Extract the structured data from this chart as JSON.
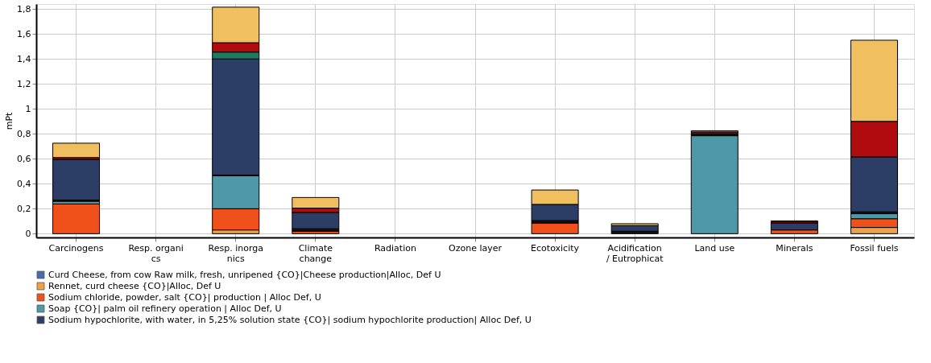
{
  "chart_data": {
    "type": "bar",
    "stacked": true,
    "ylabel": "mPt",
    "categories": [
      "Carcinogens",
      "Resp. organi\ncs",
      "Resp. inorga\nnics",
      "Climate\nchange",
      "Radiation",
      "Ozone layer",
      "Ecotoxicity",
      "Acidification\n/ Eutrophicat",
      "Land use",
      "Minerals",
      "Fossil fuels"
    ],
    "series": [
      {
        "name": "Curd Cheese, from cow Raw milk, fresh, unripened {CO}|Cheese production|Alloc, Def U",
        "color": "#4a6aa8",
        "values": [
          null,
          null,
          null,
          null,
          null,
          null,
          null,
          null,
          null,
          null,
          null
        ]
      },
      {
        "name": "Rennet, curd cheese {CO}|Alloc, Def U",
        "color": "#f0a048",
        "values": [
          null,
          null,
          0.03,
          null,
          null,
          null,
          null,
          null,
          null,
          null,
          0.05
        ]
      },
      {
        "name": "Sodium chloride, powder, salt {CO}| production | Alloc Def, U",
        "color": "#f0501a",
        "values": [
          0.238,
          null,
          0.17,
          0.02,
          null,
          null,
          0.085,
          null,
          null,
          0.03,
          0.07
        ]
      },
      {
        "name": "Soap {CO}| palm oil refinery operation | Alloc Def, U",
        "color": "#4e98a8",
        "values": [
          0.022,
          null,
          0.265,
          null,
          null,
          null,
          null,
          null,
          0.785,
          null,
          0.04
        ]
      },
      {
        "color": "#111111",
        "values": [
          0.01,
          null,
          0.005,
          0.02,
          null,
          null,
          0.02,
          0.02,
          0.015,
          null,
          0.015
        ]
      },
      {
        "name": "Sodium hypochlorite, with water, in 5,25% solution state {CO}| sodium hypochlorite production| Alloc Def, U",
        "color": "#2c3e66",
        "values": [
          0.325,
          null,
          0.93,
          0.13,
          null,
          null,
          0.13,
          0.045,
          null,
          0.055,
          0.44
        ]
      },
      {
        "color": "#1f7a60",
        "values": [
          null,
          null,
          0.055,
          null,
          null,
          null,
          null,
          null,
          null,
          null,
          null
        ]
      },
      {
        "color": "#b00c10",
        "values": [
          0.015,
          null,
          0.075,
          0.035,
          null,
          null,
          null,
          null,
          0.015,
          0.01,
          0.285
        ]
      },
      {
        "color": "#f0c060",
        "values": [
          0.115,
          null,
          0.285,
          0.085,
          null,
          null,
          0.115,
          0.015,
          0.01,
          0.008,
          0.65
        ]
      }
    ],
    "ylim": [
      -0.03,
      1.84
    ],
    "yticks": [
      0,
      {
        "value": 0.2,
        "label": "0,2"
      },
      {
        "value": 0.4,
        "label": "0,4"
      },
      {
        "value": 0.6,
        "label": "0,6"
      },
      {
        "value": 0.8,
        "label": "0,8"
      },
      1,
      {
        "value": 1.2,
        "label": "1,2"
      },
      {
        "value": 1.4,
        "label": "1,4"
      },
      {
        "value": 1.6,
        "label": "1,6"
      },
      {
        "value": 1.8,
        "label": "1,8"
      }
    ],
    "grid": true,
    "legend": "bottom"
  }
}
